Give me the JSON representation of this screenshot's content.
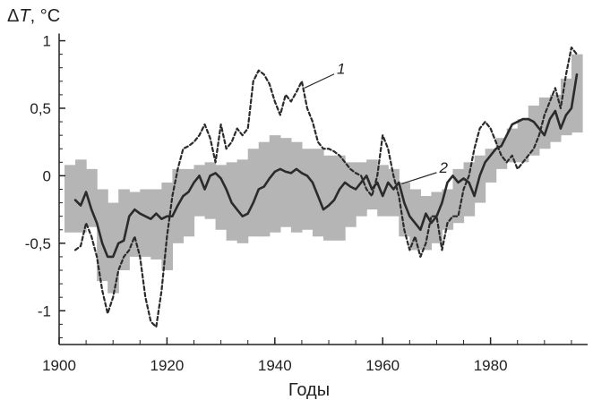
{
  "chart_data": {
    "type": "line",
    "xlabel": "Годы",
    "ylabel_symbol": "Δ",
    "ylabel_var": "T",
    "ylabel_unit": ", °C",
    "xlim": [
      1900,
      1998
    ],
    "ylim": [
      -1.25,
      1.05
    ],
    "xticks": [
      1900,
      1920,
      1940,
      1960,
      1980
    ],
    "xtick_labels": [
      "1900",
      "1920",
      "1940",
      "1960",
      "1980"
    ],
    "yticks": [
      1,
      0.5,
      0,
      -0.5,
      -1
    ],
    "ytick_labels": [
      "1",
      "0,5",
      "0",
      "-0,5",
      "-1"
    ],
    "colors": {
      "band": "#b5b5b5",
      "line": "#2b2b2b",
      "axis": "#222222"
    },
    "band": {
      "x": [
        1902,
        1904,
        1906,
        1908,
        1910,
        1912,
        1914,
        1916,
        1918,
        1920,
        1922,
        1924,
        1926,
        1928,
        1930,
        1932,
        1934,
        1936,
        1938,
        1940,
        1942,
        1944,
        1946,
        1948,
        1950,
        1952,
        1954,
        1956,
        1958,
        1960,
        1962,
        1964,
        1966,
        1968,
        1970,
        1972,
        1974,
        1976,
        1978,
        1980,
        1982,
        1984,
        1986,
        1988,
        1990,
        1992,
        1994,
        1996
      ],
      "lower": [
        -0.42,
        -0.42,
        -0.38,
        -0.78,
        -0.87,
        -0.7,
        -0.6,
        -0.6,
        -0.62,
        -0.7,
        -0.5,
        -0.45,
        -0.3,
        -0.32,
        -0.4,
        -0.48,
        -0.5,
        -0.45,
        -0.45,
        -0.42,
        -0.38,
        -0.42,
        -0.4,
        -0.45,
        -0.48,
        -0.48,
        -0.38,
        -0.3,
        -0.25,
        -0.3,
        -0.3,
        -0.45,
        -0.55,
        -0.55,
        -0.5,
        -0.4,
        -0.35,
        -0.3,
        -0.2,
        -0.05,
        0.05,
        0.1,
        0.1,
        0.15,
        0.2,
        0.25,
        0.3,
        0.32
      ],
      "upper": [
        0.08,
        0.12,
        0.05,
        -0.1,
        -0.2,
        -0.1,
        -0.12,
        -0.1,
        -0.1,
        -0.05,
        0.05,
        0.05,
        0.08,
        0.1,
        0.08,
        0.1,
        0.12,
        0.2,
        0.25,
        0.3,
        0.28,
        0.25,
        0.2,
        0.2,
        0.15,
        0.15,
        0.1,
        0.1,
        0.12,
        0.08,
        0.05,
        -0.05,
        -0.1,
        -0.15,
        -0.12,
        -0.1,
        0.05,
        0.1,
        0.15,
        0.2,
        0.28,
        0.35,
        0.42,
        0.52,
        0.58,
        0.6,
        0.72,
        0.9
      ]
    },
    "series": [
      {
        "name": "1",
        "style": "dashed",
        "x": [
          1903,
          1904,
          1905,
          1906,
          1907,
          1908,
          1909,
          1910,
          1911,
          1912,
          1913,
          1914,
          1915,
          1916,
          1917,
          1918,
          1919,
          1920,
          1921,
          1922,
          1923,
          1924,
          1925,
          1926,
          1927,
          1928,
          1929,
          1930,
          1931,
          1932,
          1933,
          1934,
          1935,
          1936,
          1937,
          1938,
          1939,
          1940,
          1941,
          1942,
          1943,
          1944,
          1945,
          1946,
          1947,
          1948,
          1949,
          1950,
          1951,
          1952,
          1953,
          1954,
          1955,
          1956,
          1957,
          1958,
          1959,
          1960,
          1961,
          1962,
          1963,
          1964,
          1965,
          1966,
          1967,
          1968,
          1969,
          1970,
          1971,
          1972,
          1973,
          1974,
          1975,
          1976,
          1977,
          1978,
          1979,
          1980,
          1981,
          1982,
          1983,
          1984,
          1985,
          1986,
          1987,
          1988,
          1989,
          1990,
          1991,
          1992,
          1993,
          1994,
          1995,
          1996
        ],
        "values": [
          -0.55,
          -0.52,
          -0.35,
          -0.45,
          -0.6,
          -0.85,
          -1.02,
          -0.9,
          -0.7,
          -0.6,
          -0.55,
          -0.45,
          -0.6,
          -0.9,
          -1.08,
          -1.12,
          -0.85,
          -0.45,
          -0.15,
          0.05,
          0.2,
          0.22,
          0.25,
          0.3,
          0.38,
          0.28,
          0.1,
          0.38,
          0.2,
          0.25,
          0.35,
          0.3,
          0.35,
          0.7,
          0.78,
          0.75,
          0.68,
          0.55,
          0.45,
          0.6,
          0.55,
          0.62,
          0.7,
          0.5,
          0.4,
          0.25,
          0.2,
          0.2,
          0.18,
          0.15,
          0.1,
          0.05,
          0.02,
          0.0,
          -0.1,
          -0.15,
          0.0,
          0.3,
          0.2,
          0.0,
          -0.15,
          -0.4,
          -0.55,
          -0.45,
          -0.6,
          -0.5,
          -0.3,
          -0.3,
          -0.55,
          -0.35,
          -0.3,
          -0.3,
          -0.1,
          0.0,
          0.2,
          0.35,
          0.4,
          0.35,
          0.25,
          0.15,
          0.1,
          0.15,
          0.05,
          0.1,
          0.15,
          0.2,
          0.3,
          0.45,
          0.55,
          0.65,
          0.5,
          0.75,
          0.95,
          0.9
        ]
      },
      {
        "name": "2",
        "style": "solid",
        "x": [
          1903,
          1904,
          1905,
          1906,
          1907,
          1908,
          1909,
          1910,
          1911,
          1912,
          1913,
          1914,
          1915,
          1916,
          1917,
          1918,
          1919,
          1920,
          1921,
          1922,
          1923,
          1924,
          1925,
          1926,
          1927,
          1928,
          1929,
          1930,
          1931,
          1932,
          1933,
          1934,
          1935,
          1936,
          1937,
          1938,
          1939,
          1940,
          1941,
          1942,
          1943,
          1944,
          1945,
          1946,
          1947,
          1948,
          1949,
          1950,
          1951,
          1952,
          1953,
          1954,
          1955,
          1956,
          1957,
          1958,
          1959,
          1960,
          1961,
          1962,
          1963,
          1964,
          1965,
          1966,
          1967,
          1968,
          1969,
          1970,
          1971,
          1972,
          1973,
          1974,
          1975,
          1976,
          1977,
          1978,
          1979,
          1980,
          1981,
          1982,
          1983,
          1984,
          1985,
          1986,
          1987,
          1988,
          1989,
          1990,
          1991,
          1992,
          1993,
          1994,
          1995,
          1996
        ],
        "values": [
          -0.18,
          -0.22,
          -0.12,
          -0.25,
          -0.35,
          -0.5,
          -0.6,
          -0.6,
          -0.5,
          -0.48,
          -0.3,
          -0.25,
          -0.28,
          -0.3,
          -0.32,
          -0.28,
          -0.32,
          -0.3,
          -0.3,
          -0.22,
          -0.15,
          -0.12,
          -0.05,
          0.0,
          -0.1,
          0.0,
          0.02,
          -0.02,
          -0.1,
          -0.2,
          -0.25,
          -0.3,
          -0.28,
          -0.2,
          -0.1,
          -0.08,
          -0.02,
          0.03,
          0.05,
          0.03,
          0.02,
          0.05,
          0.02,
          0.0,
          -0.05,
          -0.15,
          -0.25,
          -0.22,
          -0.18,
          -0.1,
          -0.05,
          -0.08,
          -0.1,
          -0.05,
          0.0,
          -0.1,
          -0.05,
          -0.15,
          -0.05,
          -0.1,
          -0.05,
          -0.2,
          -0.3,
          -0.35,
          -0.4,
          -0.28,
          -0.35,
          -0.3,
          -0.2,
          -0.05,
          0.0,
          -0.05,
          -0.02,
          -0.05,
          -0.15,
          0.0,
          0.1,
          0.15,
          0.2,
          0.22,
          0.3,
          0.38,
          0.4,
          0.42,
          0.42,
          0.4,
          0.35,
          0.3,
          0.42,
          0.48,
          0.35,
          0.45,
          0.5,
          0.75
        ]
      }
    ],
    "annotations": [
      {
        "text": "1",
        "series": "1",
        "x": 1945.5,
        "y": 0.65,
        "tx": 1951.5,
        "ty": 0.78
      },
      {
        "text": "2",
        "series": "2",
        "x": 1963.5,
        "y": -0.06,
        "tx": 1970.5,
        "ty": 0.05
      }
    ]
  }
}
